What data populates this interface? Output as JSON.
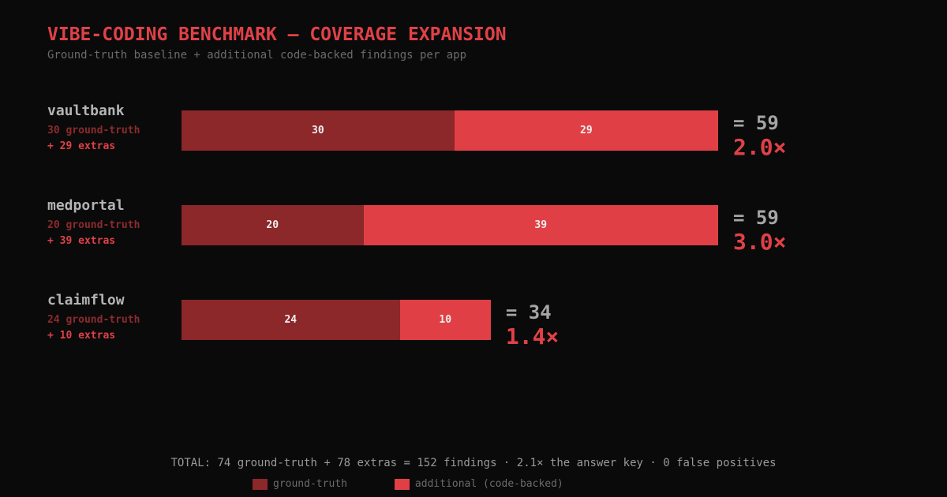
{
  "header": {
    "title": "VIBE-CODING BENCHMARK — COVERAGE EXPANSION",
    "subtitle": "Ground-truth baseline + additional code-backed findings per app"
  },
  "chart_data": {
    "type": "bar",
    "stacked": true,
    "orientation": "horizontal",
    "categories": [
      "vaultbank",
      "medportal",
      "claimflow"
    ],
    "series": [
      {
        "name": "ground-truth",
        "values": [
          30,
          20,
          24
        ]
      },
      {
        "name": "additional (code-backed)",
        "values": [
          29,
          39,
          10
        ]
      }
    ],
    "xlim": [
      0,
      59
    ],
    "grid": false,
    "legend_position": "bottom-center",
    "rows": [
      {
        "name": "vaultbank",
        "gt_note": "30 ground-truth",
        "extras_note": "+ 29 extras",
        "total_label": "= 59",
        "multiplier": "2.0×"
      },
      {
        "name": "medportal",
        "gt_note": "20 ground-truth",
        "extras_note": "+ 39 extras",
        "total_label": "= 59",
        "multiplier": "3.0×"
      },
      {
        "name": "claimflow",
        "gt_note": "24 ground-truth",
        "extras_note": "+ 10 extras",
        "total_label": "= 34",
        "multiplier": "1.4×"
      }
    ]
  },
  "footer": {
    "summary": "TOTAL: 74 ground-truth + 78 extras = 152 findings · 2.1× the answer key · 0 false positives"
  },
  "legend": {
    "ground_truth": "ground-truth",
    "additional": "additional (code-backed)"
  },
  "colors": {
    "ground_truth": "#8c272a",
    "additional": "#e04045",
    "accent": "#e04146",
    "background": "#0a0a0b"
  }
}
